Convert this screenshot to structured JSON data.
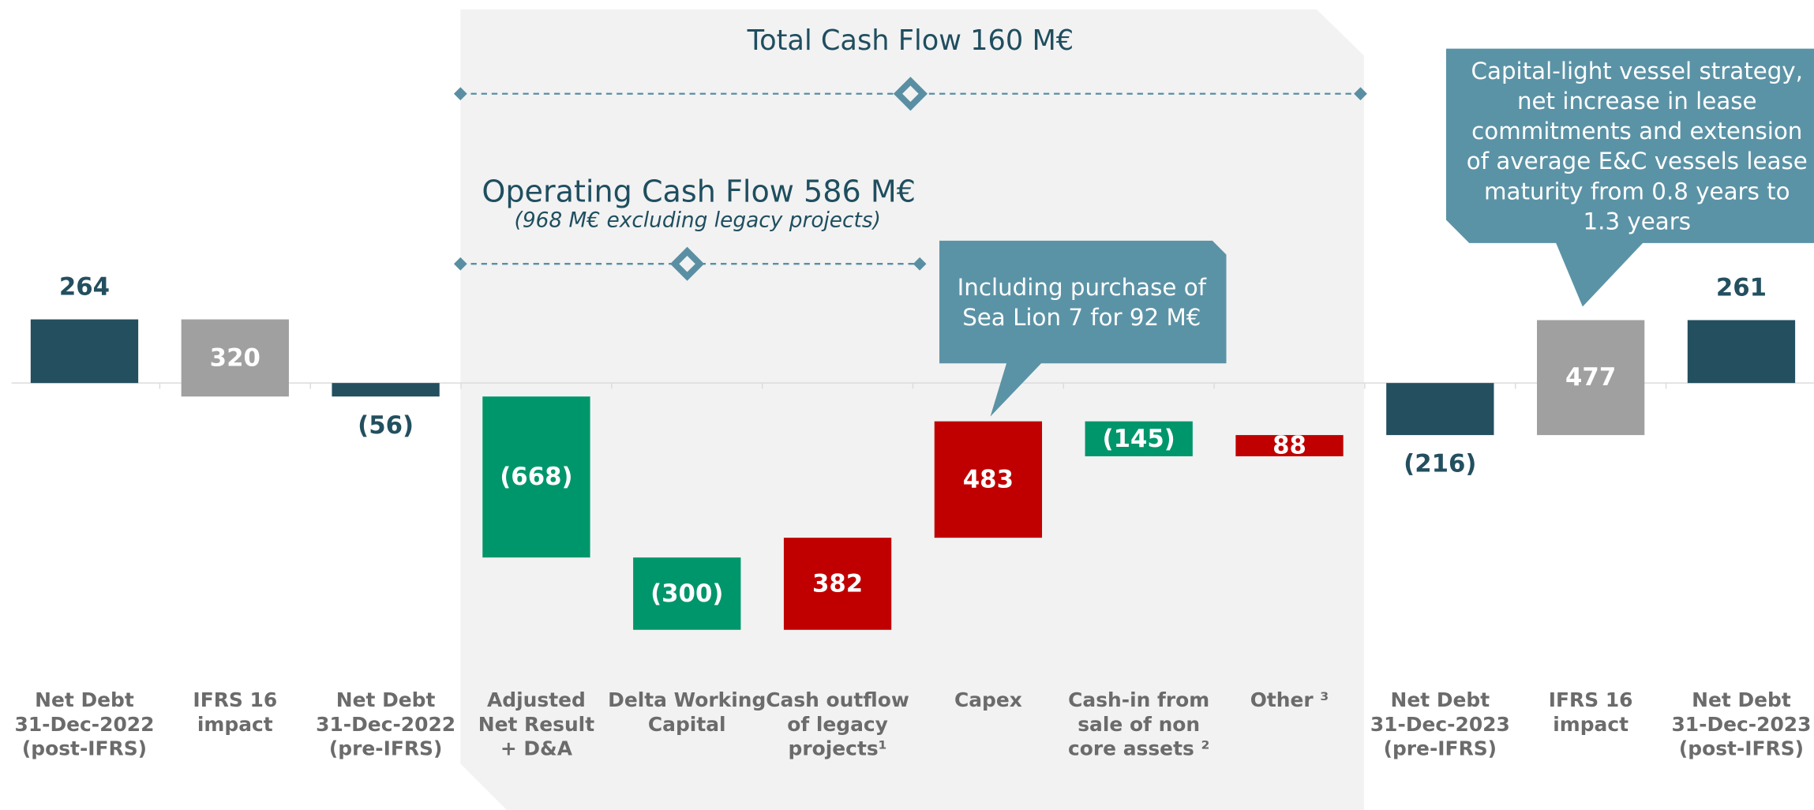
{
  "chart_data": {
    "type": "waterfall",
    "categories": [
      [
        "Net Debt",
        "31-Dec-2022",
        "(post-IFRS)"
      ],
      [
        "IFRS 16",
        "impact"
      ],
      [
        "Net Debt",
        "31-Dec-2022",
        "(pre-IFRS)"
      ],
      [
        "Adjusted",
        "Net Result",
        "+ D&A"
      ],
      [
        "Delta Working",
        "Capital"
      ],
      [
        "Cash outflow",
        "of legacy",
        "projects¹"
      ],
      [
        "Capex"
      ],
      [
        "Cash-in from",
        "sale of non",
        "core assets ²"
      ],
      [
        "Other ³"
      ],
      [
        "Net Debt",
        "31-Dec-2023",
        "(pre-IFRS)"
      ],
      [
        "IFRS 16",
        "impact"
      ],
      [
        "Net Debt",
        "31-Dec-2023",
        "(post-IFRS)"
      ]
    ],
    "values": [
      264,
      320,
      -56,
      -668,
      -300,
      382,
      483,
      -145,
      88,
      -216,
      477,
      261
    ],
    "value_labels": [
      "264",
      "320",
      "(56)",
      "(668)",
      "(300)",
      "382",
      "483",
      "(145)",
      "88",
      "(216)",
      "477",
      "261"
    ],
    "measure": [
      "total",
      "bridge",
      "total",
      "relative",
      "relative",
      "relative",
      "relative",
      "relative",
      "relative",
      "total",
      "bridge",
      "total"
    ],
    "colors": [
      "#234f5f",
      "#a0a0a0",
      "#234f5f",
      "#00966b",
      "#00966b",
      "#c00000",
      "#c00000",
      "#00966b",
      "#c00000",
      "#234f5f",
      "#a0a0a0",
      "#234f5f"
    ],
    "annotations": {
      "total_cash_flow": "Total Cash Flow 160 M€",
      "operating_cash_flow": "Operating Cash Flow 586 M€",
      "operating_note": "(968 M€ excluding legacy projects)",
      "capex_callout": [
        "Including purchase of",
        "Sea Lion 7 for 92 M€"
      ],
      "lease_callout": [
        "Capital-light vessel strategy,",
        "net increase in lease",
        "commitments and extension",
        "of average E&C vessels lease",
        "maturity from 0.8 years to",
        "1.3 years"
      ]
    }
  }
}
